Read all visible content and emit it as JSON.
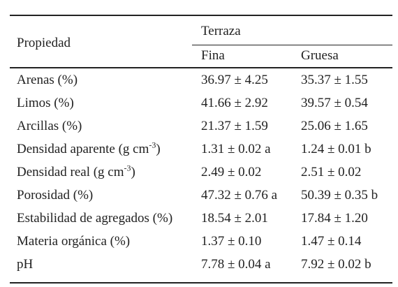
{
  "table": {
    "header": {
      "property": "Propiedad",
      "group": "Terraza",
      "col_fina": "Fina",
      "col_gruesa": "Gruesa"
    },
    "rows": [
      {
        "label": "Arenas (%)",
        "label_sup": "",
        "label_end": "",
        "fina": "36.97 ± 4.25",
        "gruesa": "35.37 ± 1.55"
      },
      {
        "label": "Limos (%)",
        "label_sup": "",
        "label_end": "",
        "fina": "41.66 ± 2.92",
        "gruesa": "39.57 ± 0.54"
      },
      {
        "label": "Arcillas (%)",
        "label_sup": "",
        "label_end": "",
        "fina": "21.37 ± 1.59",
        "gruesa": "25.06 ± 1.65"
      },
      {
        "label": "Densidad aparente (g cm",
        "label_sup": "-3",
        "label_end": ")",
        "fina": "1.31 ± 0.02 a",
        "gruesa": "1.24 ± 0.01 b"
      },
      {
        "label": "Densidad real (g cm",
        "label_sup": "-3",
        "label_end": ")",
        "fina": "2.49 ± 0.02",
        "gruesa": "2.51 ± 0.02"
      },
      {
        "label": "Porosidad (%)",
        "label_sup": "",
        "label_end": "",
        "fina": "47.32 ± 0.76 a",
        "gruesa": "50.39 ± 0.35 b"
      },
      {
        "label": "Estabilidad de agregados (%)",
        "label_sup": "",
        "label_end": "",
        "fina": "18.54 ± 2.01",
        "gruesa": "17.84 ± 1.20"
      },
      {
        "label": "Materia orgánica (%)",
        "label_sup": "",
        "label_end": "",
        "fina": "1.37 ± 0.10",
        "gruesa": "1.47 ± 0.14"
      },
      {
        "label": "pH",
        "label_sup": "",
        "label_end": "",
        "fina": "7.78 ± 0.04 a",
        "gruesa": "7.92 ± 0.02 b"
      }
    ]
  }
}
